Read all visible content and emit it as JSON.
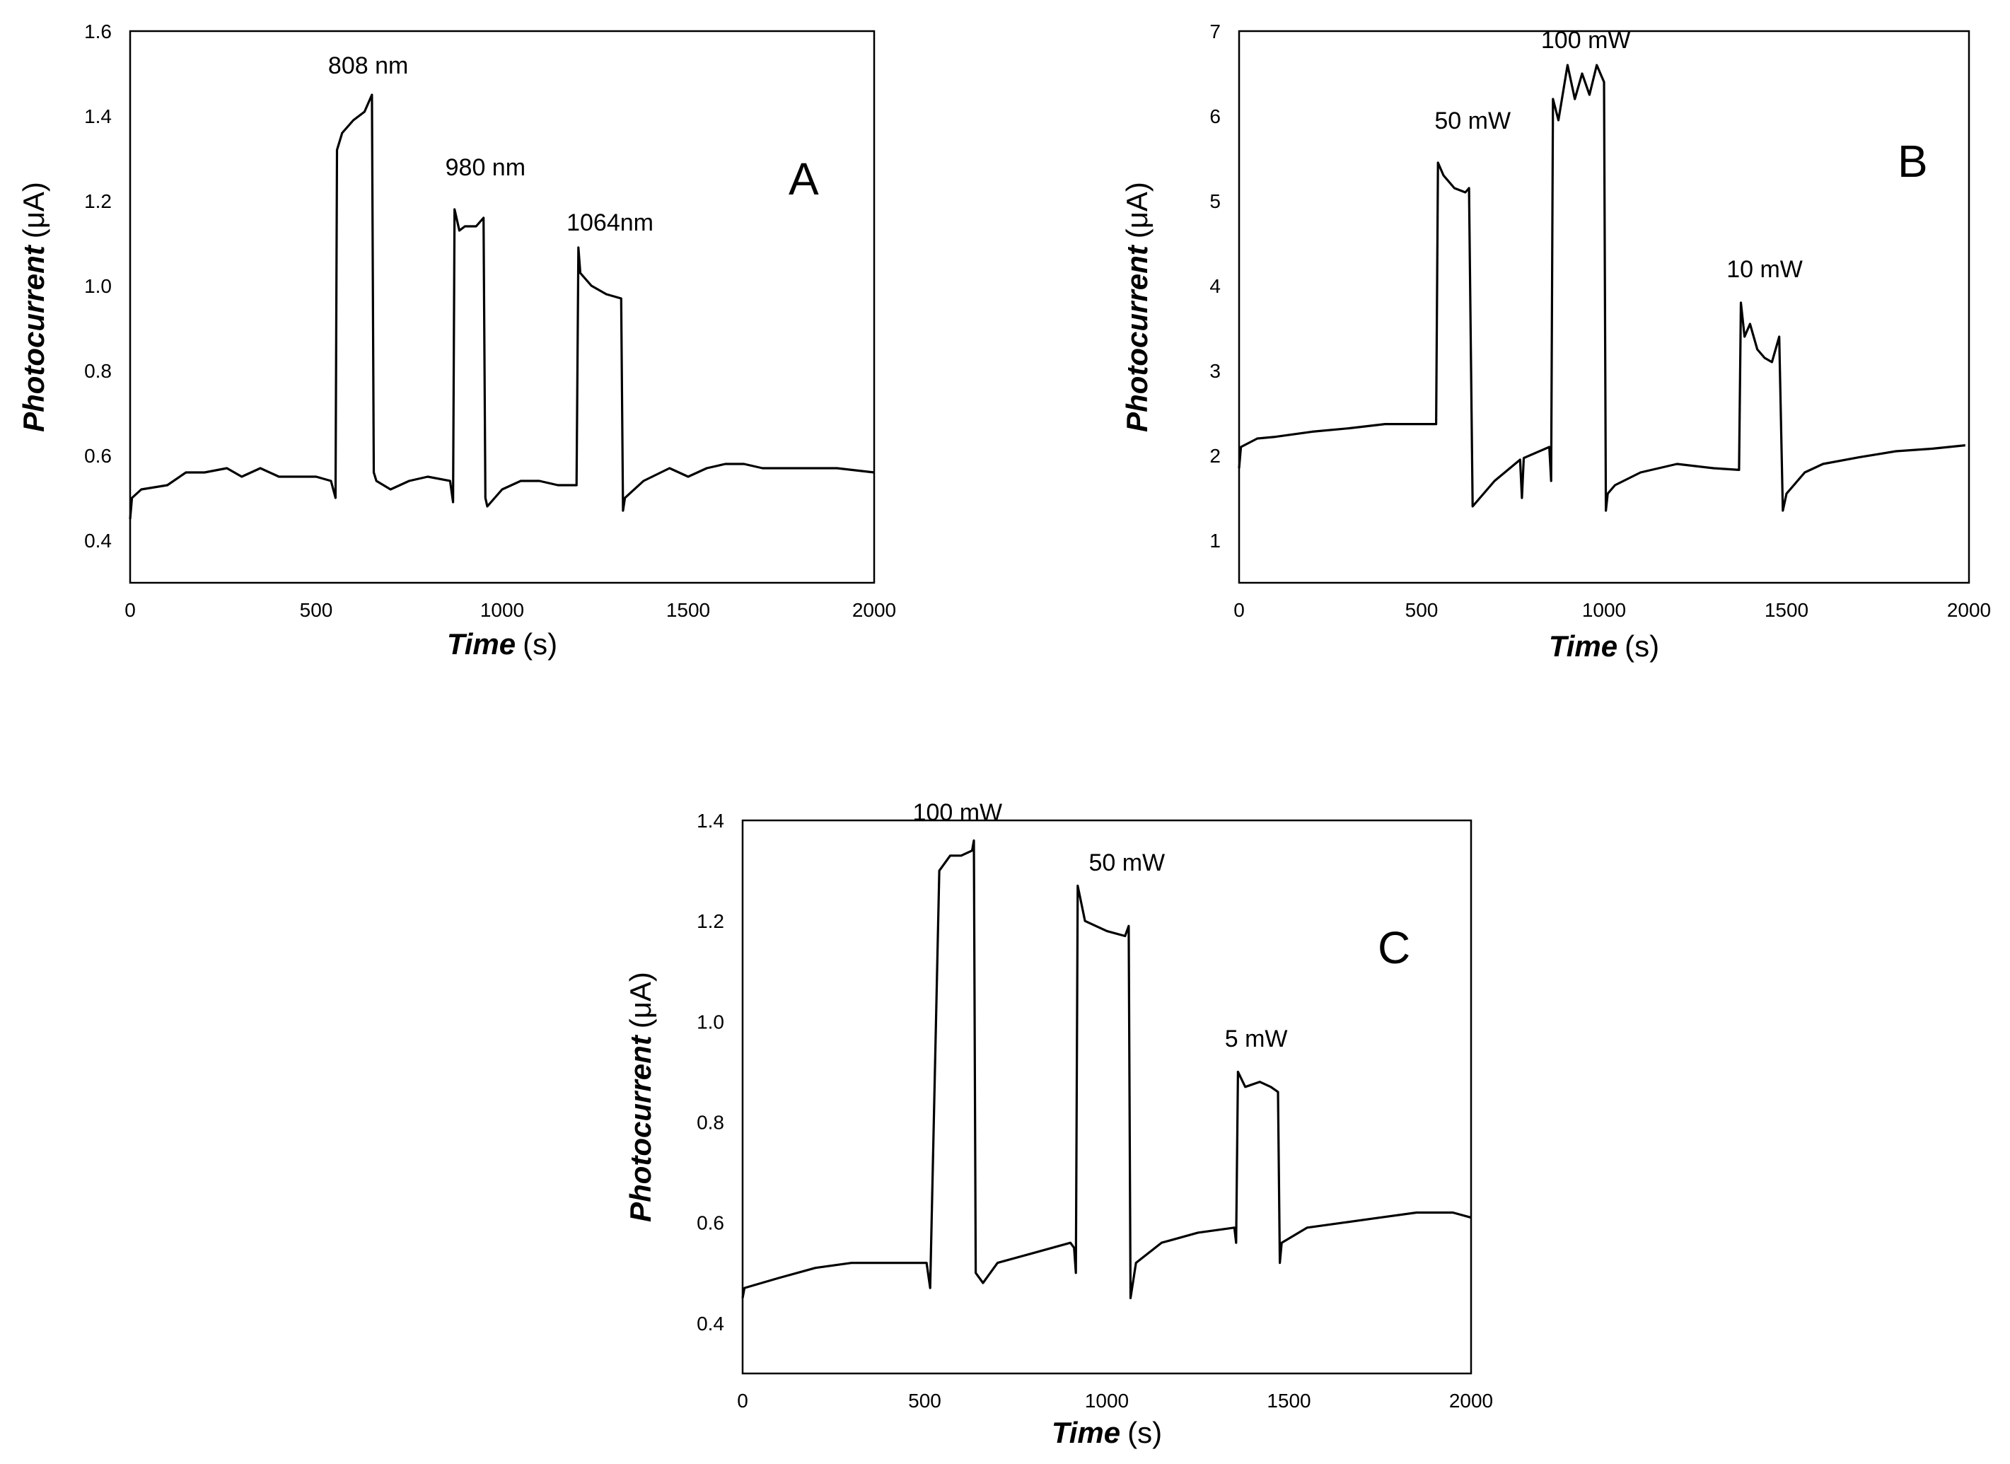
{
  "chart_data": [
    {
      "type": "line",
      "panel_label": "A",
      "xlabel": "Time",
      "xlabel_unit": "(s)",
      "ylabel": "Photocurrent",
      "ylabel_unit": "(μA)",
      "xlim": [
        0,
        2000
      ],
      "ylim": [
        0.3,
        1.6
      ],
      "xticks": [
        0,
        500,
        1000,
        1500,
        2000
      ],
      "yticks": [
        0.4,
        0.6,
        0.8,
        1.0,
        1.2,
        1.4,
        1.6
      ],
      "ytick_labels": [
        "0.4",
        "0.6",
        "0.8",
        "1.0",
        "1.2",
        "1.4",
        "1.6"
      ],
      "series": [
        {
          "name": "photocurrent",
          "x": [
            0,
            5,
            30,
            100,
            150,
            200,
            260,
            300,
            350,
            400,
            450,
            500,
            540,
            552,
            556,
            570,
            600,
            630,
            650,
            655,
            662,
            700,
            750,
            800,
            860,
            868,
            872,
            885,
            900,
            930,
            950,
            955,
            960,
            1000,
            1050,
            1100,
            1150,
            1200,
            1205,
            1210,
            1240,
            1280,
            1320,
            1325,
            1330,
            1380,
            1450,
            1500,
            1550,
            1600,
            1650,
            1700,
            1800,
            1900,
            2000
          ],
          "y": [
            0.45,
            0.5,
            0.52,
            0.53,
            0.56,
            0.56,
            0.57,
            0.55,
            0.57,
            0.55,
            0.55,
            0.55,
            0.54,
            0.5,
            1.32,
            1.36,
            1.39,
            1.41,
            1.45,
            0.56,
            0.54,
            0.52,
            0.54,
            0.55,
            0.54,
            0.49,
            1.18,
            1.13,
            1.14,
            1.14,
            1.16,
            0.5,
            0.48,
            0.52,
            0.54,
            0.54,
            0.53,
            0.53,
            1.09,
            1.03,
            1.0,
            0.98,
            0.97,
            0.47,
            0.5,
            0.54,
            0.57,
            0.55,
            0.57,
            0.58,
            0.58,
            0.57,
            0.57,
            0.57,
            0.56
          ]
        }
      ],
      "annotations": [
        {
          "text": "808 nm",
          "x": 640,
          "y": 1.5
        },
        {
          "text": "980 nm",
          "x": 955,
          "y": 1.26
        },
        {
          "text": "1064nm",
          "x": 1290,
          "y": 1.13
        }
      ]
    },
    {
      "type": "line",
      "panel_label": "B",
      "xlabel": "Time",
      "xlabel_unit": "(s)",
      "ylabel": "Photocurrent",
      "ylabel_unit": "(μA)",
      "xlim": [
        0,
        2000
      ],
      "ylim": [
        0.5,
        7.0
      ],
      "xticks": [
        0,
        500,
        1000,
        1500,
        2000
      ],
      "yticks": [
        1,
        2,
        3,
        4,
        5,
        6,
        7
      ],
      "ytick_labels": [
        "1",
        "2",
        "3",
        "4",
        "5",
        "6",
        "7"
      ],
      "series": [
        {
          "name": "photocurrent",
          "x": [
            0,
            5,
            50,
            100,
            200,
            300,
            400,
            500,
            540,
            545,
            560,
            590,
            620,
            630,
            640,
            700,
            770,
            775,
            780,
            850,
            855,
            860,
            875,
            900,
            920,
            940,
            960,
            980,
            1000,
            1005,
            1010,
            1030,
            1100,
            1200,
            1300,
            1370,
            1375,
            1385,
            1400,
            1420,
            1440,
            1460,
            1480,
            1490,
            1500,
            1550,
            1600,
            1700,
            1800,
            1900,
            1990
          ],
          "y": [
            1.85,
            2.1,
            2.2,
            2.22,
            2.28,
            2.32,
            2.37,
            2.37,
            2.37,
            5.45,
            5.3,
            5.15,
            5.1,
            5.15,
            1.4,
            1.7,
            1.95,
            1.5,
            1.97,
            2.1,
            1.7,
            6.2,
            5.95,
            6.6,
            6.2,
            6.5,
            6.25,
            6.6,
            6.4,
            1.35,
            1.55,
            1.65,
            1.8,
            1.9,
            1.85,
            1.83,
            3.8,
            3.4,
            3.55,
            3.25,
            3.15,
            3.1,
            3.4,
            1.35,
            1.55,
            1.8,
            1.9,
            1.98,
            2.05,
            2.08,
            2.12
          ]
        }
      ],
      "annotations": [
        {
          "text": "50 mW",
          "x": 640,
          "y": 5.85
        },
        {
          "text": "100 mW",
          "x": 950,
          "y": 6.8
        },
        {
          "text": "10 mW",
          "x": 1440,
          "y": 4.1
        }
      ]
    },
    {
      "type": "line",
      "panel_label": "C",
      "xlabel": "Time",
      "xlabel_unit": "(s)",
      "ylabel": "Photocurrent",
      "ylabel_unit": "(μA)",
      "xlim": [
        0,
        2000
      ],
      "ylim": [
        0.3,
        1.4
      ],
      "xticks": [
        0,
        500,
        1000,
        1500,
        2000
      ],
      "yticks": [
        0.4,
        0.6,
        0.8,
        1.0,
        1.2,
        1.4
      ],
      "ytick_labels": [
        "0.4",
        "0.6",
        "0.8",
        "1.0",
        "1.2",
        "1.4"
      ],
      "series": [
        {
          "name": "photocurrent",
          "x": [
            0,
            5,
            100,
            200,
            300,
            400,
            500,
            505,
            515,
            540,
            570,
            600,
            630,
            635,
            640,
            660,
            700,
            800,
            900,
            910,
            915,
            920,
            940,
            970,
            1000,
            1050,
            1060,
            1065,
            1080,
            1150,
            1250,
            1350,
            1355,
            1360,
            1380,
            1420,
            1450,
            1470,
            1475,
            1480,
            1550,
            1650,
            1750,
            1850,
            1950,
            2000
          ],
          "y": [
            0.45,
            0.47,
            0.49,
            0.51,
            0.52,
            0.52,
            0.52,
            0.52,
            0.47,
            1.3,
            1.33,
            1.33,
            1.34,
            1.36,
            0.5,
            0.48,
            0.52,
            0.54,
            0.56,
            0.55,
            0.5,
            1.27,
            1.2,
            1.19,
            1.18,
            1.17,
            1.19,
            0.45,
            0.52,
            0.56,
            0.58,
            0.59,
            0.56,
            0.9,
            0.87,
            0.88,
            0.87,
            0.86,
            0.52,
            0.56,
            0.59,
            0.6,
            0.61,
            0.62,
            0.62,
            0.61
          ]
        }
      ],
      "annotations": [
        {
          "text": "100 mW",
          "x": 590,
          "y": 1.4
        },
        {
          "text": "50 mW",
          "x": 1055,
          "y": 1.3
        },
        {
          "text": "5 mW",
          "x": 1410,
          "y": 0.95
        }
      ]
    }
  ]
}
